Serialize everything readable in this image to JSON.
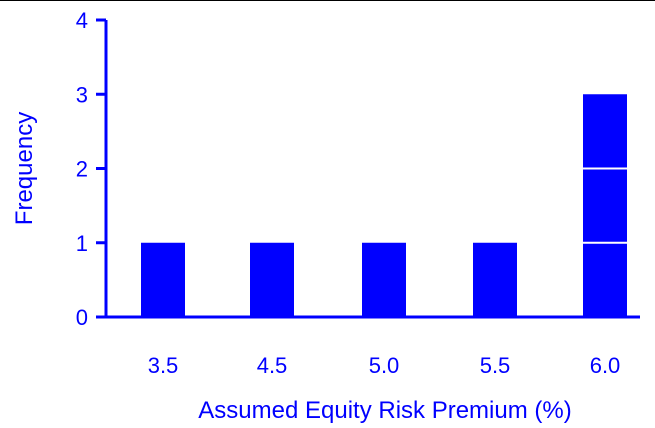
{
  "chart_data": {
    "type": "bar",
    "title": "",
    "xlabel": "Assumed Equity Risk Premium (%)",
    "ylabel": "Frequency",
    "categories": [
      "3.5",
      "4.5",
      "5.0",
      "5.5",
      "6.0"
    ],
    "values": [
      1,
      1,
      1,
      1,
      3
    ],
    "ylim": [
      0,
      4
    ],
    "yticks": [
      "0",
      "1",
      "2",
      "3",
      "4"
    ],
    "stacked_unit_segments": true,
    "grid": false,
    "legend": "none",
    "colors": {
      "bar": "#0000ff",
      "axis": "#0000ff",
      "text": "#0000ff",
      "segment_divider": "#ffffff"
    }
  }
}
